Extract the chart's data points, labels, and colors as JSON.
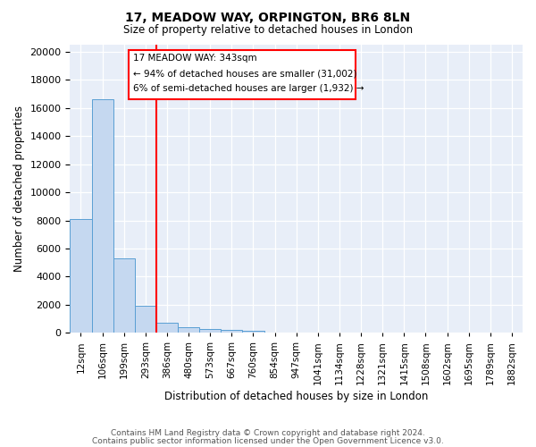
{
  "title": "17, MEADOW WAY, ORPINGTON, BR6 8LN",
  "subtitle": "Size of property relative to detached houses in London",
  "xlabel": "Distribution of detached houses by size in London",
  "ylabel": "Number of detached properties",
  "bar_color": "#c5d8f0",
  "bar_edge_color": "#5a9fd4",
  "background_color": "#e8eef8",
  "bin_labels": [
    "12sqm",
    "106sqm",
    "199sqm",
    "293sqm",
    "386sqm",
    "480sqm",
    "573sqm",
    "667sqm",
    "760sqm",
    "854sqm",
    "947sqm",
    "1041sqm",
    "1134sqm",
    "1228sqm",
    "1321sqm",
    "1415sqm",
    "1508sqm",
    "1602sqm",
    "1695sqm",
    "1789sqm",
    "1882sqm"
  ],
  "bar_values": [
    8100,
    16600,
    5300,
    1900,
    700,
    380,
    280,
    190,
    130,
    0,
    0,
    0,
    0,
    0,
    0,
    0,
    0,
    0,
    0,
    0,
    0
  ],
  "red_line_x": 3.5,
  "annotation_text_line1": "17 MEADOW WAY: 343sqm",
  "annotation_text_line2": "← 94% of detached houses are smaller (31,002)",
  "annotation_text_line3": "6% of semi-detached houses are larger (1,932) →",
  "ylim": [
    0,
    20500
  ],
  "yticks": [
    0,
    2000,
    4000,
    6000,
    8000,
    10000,
    12000,
    14000,
    16000,
    18000,
    20000
  ],
  "footer_line1": "Contains HM Land Registry data © Crown copyright and database right 2024.",
  "footer_line2": "Contains public sector information licensed under the Open Government Licence v3.0."
}
